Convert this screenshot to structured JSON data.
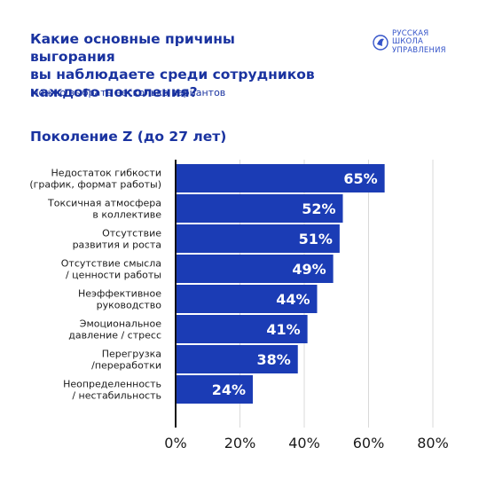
{
  "header": {
    "title": "Какие основные причины выгорания\nвы наблюдаете среди сотрудников\nкаждого поколения?",
    "subtitle": "Можно выбрать несколько вариантов",
    "logo_text": "РУССКАЯ\nШКОЛА\nУПРАВЛЕНИЯ"
  },
  "colors": {
    "bar": "#1b3cb5",
    "text": "#1a33a0",
    "grid": "#d9d9d9",
    "axis": "#111111"
  },
  "chart_data": {
    "type": "bar",
    "orientation": "horizontal",
    "title": "Поколение Z (до 27 лет)",
    "categories": [
      [
        "Недостаток гибкости",
        "(график, формат работы)"
      ],
      [
        "Токсичная атмосфера",
        "в коллективе"
      ],
      [
        "Отсутствие",
        "развития и роста"
      ],
      [
        "Отсутствие смысла",
        "/ ценности работы"
      ],
      [
        "Неэффективное",
        "руководство"
      ],
      [
        "Эмоциональное",
        "давление / стресс"
      ],
      [
        "Перегрузка",
        "/переработки"
      ],
      [
        "Неопределенность",
        "/ нестабильность"
      ]
    ],
    "values": [
      65,
      52,
      51,
      49,
      44,
      41,
      38,
      24
    ],
    "value_labels": [
      "65%",
      "52%",
      "51%",
      "49%",
      "44%",
      "41%",
      "38%",
      "24%"
    ],
    "xlim": [
      0,
      80
    ],
    "ticks": [
      0,
      20,
      40,
      60,
      80
    ],
    "tick_labels": [
      "0%",
      "20%",
      "40%",
      "60%",
      "80%"
    ],
    "grid": true
  }
}
